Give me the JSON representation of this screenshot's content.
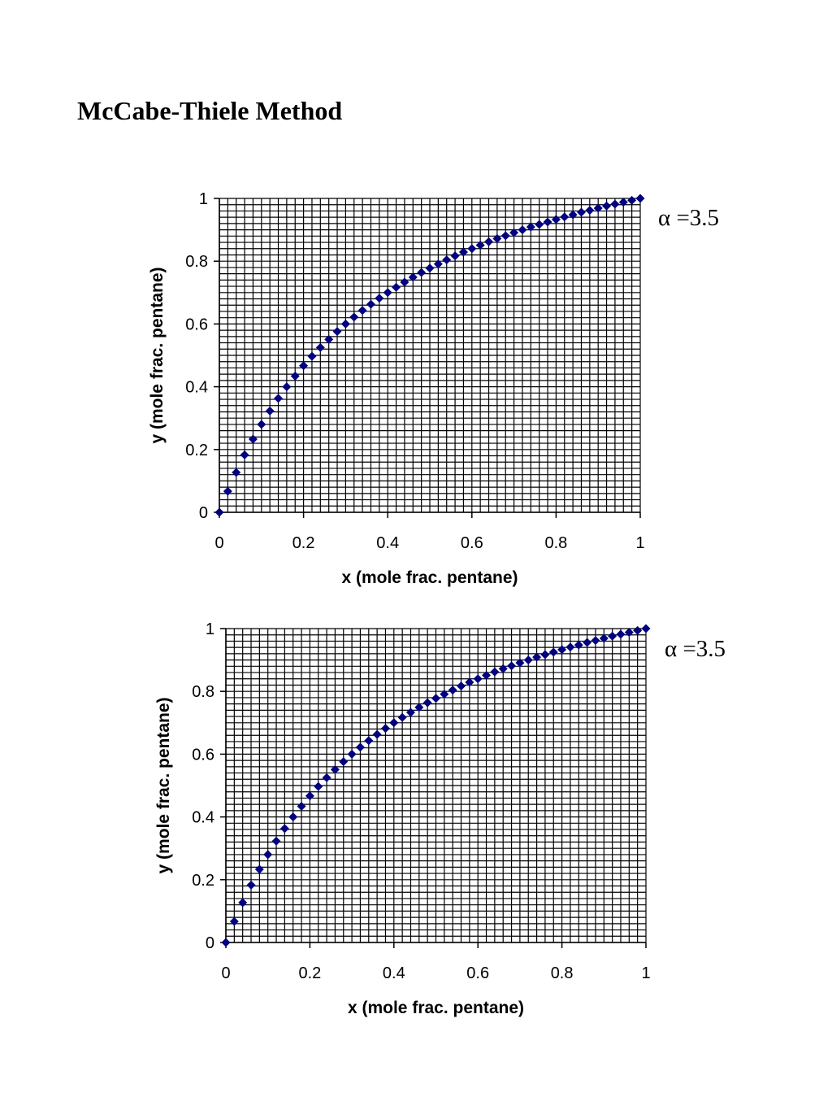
{
  "page": {
    "title": "McCabe-Thiele Method"
  },
  "colors": {
    "marker": "#000080",
    "grid": "#000000"
  },
  "chart_data": [
    {
      "type": "scatter",
      "marker": "diamond",
      "xlabel": "x (mole frac. pentane)",
      "ylabel": "y (mole frac. pentane)",
      "xlim": [
        0,
        1
      ],
      "ylim": [
        0,
        1
      ],
      "xticks": [
        "0",
        "0.2",
        "0.4",
        "0.6",
        "0.8",
        "1"
      ],
      "yticks": [
        "0",
        "0.2",
        "0.4",
        "0.6",
        "0.8",
        "1"
      ],
      "grid": true,
      "minor_divisions": 50,
      "annotation": "α =3.5",
      "series": [
        {
          "x": [
            0,
            0.02,
            0.04,
            0.06,
            0.08,
            0.1,
            0.12,
            0.14,
            0.16,
            0.18,
            0.2,
            0.22,
            0.24,
            0.26,
            0.28,
            0.3,
            0.32,
            0.34,
            0.36,
            0.38,
            0.4,
            0.42,
            0.44,
            0.46,
            0.48,
            0.5,
            0.52,
            0.54,
            0.56,
            0.58,
            0.6,
            0.62,
            0.64,
            0.66,
            0.68,
            0.7,
            0.72,
            0.74,
            0.76,
            0.78,
            0.8,
            0.82,
            0.84,
            0.86,
            0.88,
            0.9,
            0.92,
            0.94,
            0.96,
            0.98,
            1
          ],
          "y": [
            0,
            0.067,
            0.127,
            0.183,
            0.233,
            0.28,
            0.323,
            0.363,
            0.4,
            0.434,
            0.467,
            0.497,
            0.525,
            0.551,
            0.576,
            0.6,
            0.622,
            0.643,
            0.663,
            0.682,
            0.7,
            0.717,
            0.733,
            0.749,
            0.764,
            0.778,
            0.791,
            0.804,
            0.817,
            0.829,
            0.84,
            0.851,
            0.862,
            0.872,
            0.881,
            0.891,
            0.9,
            0.909,
            0.917,
            0.925,
            0.933,
            0.941,
            0.948,
            0.956,
            0.962,
            0.969,
            0.976,
            0.982,
            0.988,
            0.994,
            1
          ]
        }
      ]
    },
    {
      "type": "scatter",
      "marker": "diamond",
      "xlabel": "x (mole frac. pentane)",
      "ylabel": "y (mole frac. pentane)",
      "xlim": [
        0,
        1
      ],
      "ylim": [
        0,
        1
      ],
      "xticks": [
        "0",
        "0.2",
        "0.4",
        "0.6",
        "0.8",
        "1"
      ],
      "yticks": [
        "0",
        "0.2",
        "0.4",
        "0.6",
        "0.8",
        "1"
      ],
      "grid": true,
      "minor_divisions": 50,
      "annotation": "α =3.5",
      "series": [
        {
          "x": [
            0,
            0.02,
            0.04,
            0.06,
            0.08,
            0.1,
            0.12,
            0.14,
            0.16,
            0.18,
            0.2,
            0.22,
            0.24,
            0.26,
            0.28,
            0.3,
            0.32,
            0.34,
            0.36,
            0.38,
            0.4,
            0.42,
            0.44,
            0.46,
            0.48,
            0.5,
            0.52,
            0.54,
            0.56,
            0.58,
            0.6,
            0.62,
            0.64,
            0.66,
            0.68,
            0.7,
            0.72,
            0.74,
            0.76,
            0.78,
            0.8,
            0.82,
            0.84,
            0.86,
            0.88,
            0.9,
            0.92,
            0.94,
            0.96,
            0.98,
            1
          ],
          "y": [
            0,
            0.067,
            0.127,
            0.183,
            0.233,
            0.28,
            0.323,
            0.363,
            0.4,
            0.434,
            0.467,
            0.497,
            0.525,
            0.551,
            0.576,
            0.6,
            0.622,
            0.643,
            0.663,
            0.682,
            0.7,
            0.717,
            0.733,
            0.749,
            0.764,
            0.778,
            0.791,
            0.804,
            0.817,
            0.829,
            0.84,
            0.851,
            0.862,
            0.872,
            0.881,
            0.891,
            0.9,
            0.909,
            0.917,
            0.925,
            0.933,
            0.941,
            0.948,
            0.956,
            0.962,
            0.969,
            0.976,
            0.982,
            0.988,
            0.994,
            1
          ]
        }
      ]
    }
  ]
}
